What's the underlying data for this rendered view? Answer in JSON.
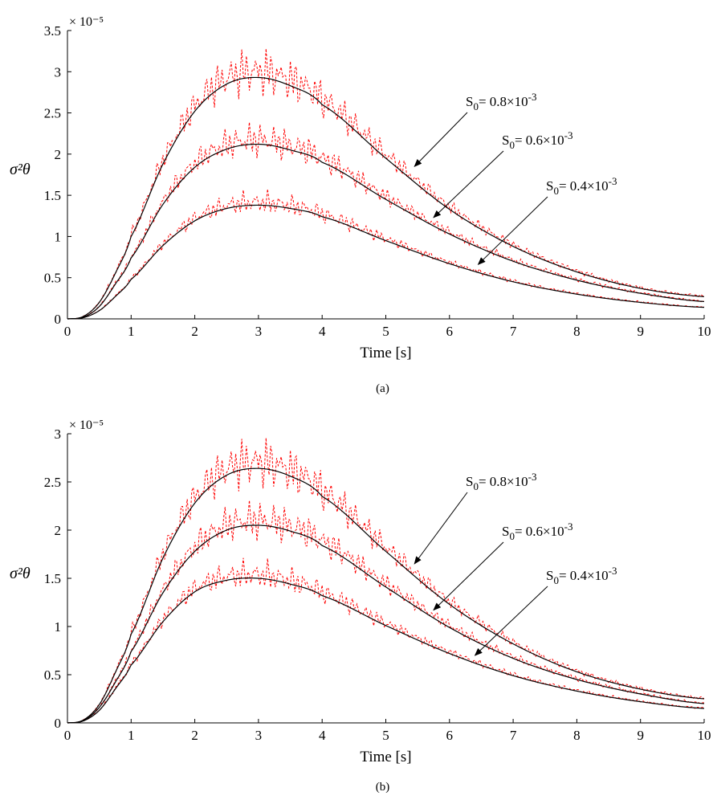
{
  "chart_data": [
    {
      "type": "line",
      "panel_label": "(a)",
      "xlabel": "Time [s]",
      "ylabel": "σ²θ",
      "y_multiplier_label": "× 10⁻⁵",
      "xlim": [
        0,
        10
      ],
      "ylim": [
        0,
        3.5
      ],
      "xticks": [
        "0",
        "1",
        "2",
        "3",
        "4",
        "5",
        "6",
        "7",
        "8",
        "9",
        "10"
      ],
      "yticks": [
        "0",
        "0.5",
        "1",
        "1.5",
        "2",
        "2.5",
        "3",
        "3.5"
      ],
      "x": [
        0,
        0.25,
        0.5,
        0.75,
        1,
        1.5,
        2,
        2.5,
        3,
        3.5,
        4,
        5,
        6,
        7,
        8,
        9,
        10
      ],
      "series": [
        {
          "values": [
            0,
            0.03,
            0.2,
            0.55,
            1.0,
            1.88,
            2.52,
            2.85,
            2.93,
            2.83,
            2.6,
            1.95,
            1.33,
            0.88,
            0.57,
            0.37,
            0.27
          ],
          "color": "#000000"
        },
        {
          "values": [
            0,
            0.02,
            0.15,
            0.42,
            0.74,
            1.39,
            1.84,
            2.06,
            2.12,
            2.05,
            1.9,
            1.45,
            1.03,
            0.7,
            0.47,
            0.31,
            0.21
          ],
          "color": "#000000"
        },
        {
          "values": [
            0,
            0.015,
            0.1,
            0.27,
            0.48,
            0.89,
            1.19,
            1.34,
            1.38,
            1.34,
            1.24,
            0.95,
            0.67,
            0.45,
            0.3,
            0.2,
            0.14
          ],
          "color": "#000000"
        }
      ],
      "annotations": [
        {
          "base": "S",
          "sub": "0",
          "text": "= 0.8×10",
          "sup": "-3",
          "arrow_to": [
            5.45,
            1.85
          ]
        },
        {
          "base": "S",
          "sub": "0",
          "text": "= 0.6×10",
          "sup": "-3",
          "arrow_to": [
            5.75,
            1.23
          ]
        },
        {
          "base": "S",
          "sub": "0",
          "text": "= 0.4×10",
          "sup": "-3",
          "arrow_to": [
            6.45,
            0.66
          ]
        }
      ],
      "noisy_color": "#ff0000"
    },
    {
      "type": "line",
      "panel_label": "(b)",
      "xlabel": "Time [s]",
      "ylabel": "σ²θ",
      "y_multiplier_label": "× 10⁻⁵",
      "xlim": [
        0,
        10
      ],
      "ylim": [
        0,
        3
      ],
      "xticks": [
        "0",
        "1",
        "2",
        "3",
        "4",
        "5",
        "6",
        "7",
        "8",
        "9",
        "10"
      ],
      "yticks": [
        "0",
        "0.5",
        "1",
        "1.5",
        "2",
        "2.5",
        "3"
      ],
      "x": [
        0,
        0.25,
        0.5,
        0.75,
        1,
        1.5,
        2,
        2.5,
        3,
        3.5,
        4,
        5,
        6,
        7,
        8,
        9,
        10
      ],
      "series": [
        {
          "values": [
            0,
            0.03,
            0.19,
            0.52,
            0.92,
            1.71,
            2.28,
            2.57,
            2.64,
            2.56,
            2.35,
            1.78,
            1.23,
            0.82,
            0.53,
            0.35,
            0.25
          ],
          "color": "#000000"
        },
        {
          "values": [
            0,
            0.025,
            0.16,
            0.42,
            0.74,
            1.35,
            1.78,
            2.0,
            2.05,
            1.99,
            1.84,
            1.41,
            0.99,
            0.67,
            0.45,
            0.3,
            0.2
          ],
          "color": "#000000"
        },
        {
          "values": [
            0,
            0.02,
            0.13,
            0.35,
            0.6,
            1.05,
            1.36,
            1.48,
            1.5,
            1.44,
            1.32,
            1.01,
            0.72,
            0.49,
            0.33,
            0.22,
            0.15
          ],
          "color": "#000000"
        }
      ],
      "annotations": [
        {
          "base": "S",
          "sub": "0",
          "text": "= 0.8×10",
          "sup": "-3",
          "arrow_to": [
            5.45,
            1.65
          ]
        },
        {
          "base": "S",
          "sub": "0",
          "text": "= 0.6×10",
          "sup": "-3",
          "arrow_to": [
            5.75,
            1.17
          ]
        },
        {
          "base": "S",
          "sub": "0",
          "text": "= 0.4×10",
          "sup": "-3",
          "arrow_to": [
            6.4,
            0.7
          ]
        }
      ],
      "noisy_color": "#ff0000"
    }
  ]
}
